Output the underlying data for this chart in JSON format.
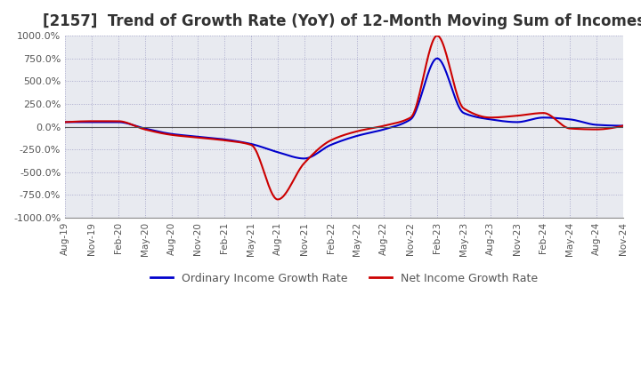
{
  "title": "[2157]  Trend of Growth Rate (YoY) of 12-Month Moving Sum of Incomes",
  "title_fontsize": 12,
  "ylim": [
    -1000,
    1000
  ],
  "yticks": [
    -1000,
    -750,
    -500,
    -250,
    0,
    250,
    500,
    750,
    1000
  ],
  "yticklabels": [
    "-1000.0%",
    "-750.0%",
    "-500.0%",
    "-250.0%",
    "0.0%",
    "250.0%",
    "500.0%",
    "750.0%",
    "1000.0%"
  ],
  "background_color": "#FFFFFF",
  "plot_bg_color": "#E8EAF0",
  "grid_color": "#AAAACC",
  "ordinary_color": "#0000CC",
  "net_color": "#CC0000",
  "legend_labels": [
    "Ordinary Income Growth Rate",
    "Net Income Growth Rate"
  ],
  "x_labels": [
    "Aug-19",
    "Nov-19",
    "Feb-20",
    "May-20",
    "Aug-20",
    "Nov-20",
    "Feb-21",
    "May-21",
    "Aug-21",
    "Nov-21",
    "Feb-22",
    "May-22",
    "Aug-22",
    "Nov-22",
    "Feb-23",
    "May-23",
    "Aug-23",
    "Nov-23",
    "Feb-24",
    "May-24",
    "Aug-24",
    "Nov-24"
  ]
}
